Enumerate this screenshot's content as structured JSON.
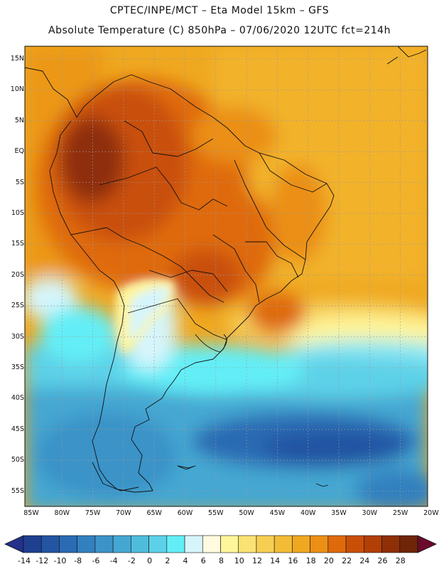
{
  "header": {
    "line1": "CPTEC/INPE/MCT –  Eta Model 15km – GFS",
    "line2": "Absolute Temperature (C) 850hPa – 07/06/2020 12UTC fct=214h"
  },
  "lat_labels": [
    "15N",
    "10N",
    "5N",
    "EQ",
    "5S",
    "10S",
    "15S",
    "20S",
    "25S",
    "30S",
    "35S",
    "40S",
    "45S",
    "50S",
    "55S"
  ],
  "lon_labels": [
    "85W",
    "80W",
    "75W",
    "70W",
    "65W",
    "60W",
    "55W",
    "50W",
    "45W",
    "40W",
    "35W",
    "30W",
    "25W",
    "20W"
  ],
  "colorbar": {
    "labels": [
      "-14",
      "-12",
      "-10",
      "-8",
      "-6",
      "-4",
      "-2",
      "0",
      "2",
      "4",
      "6",
      "8",
      "10",
      "12",
      "14",
      "16",
      "18",
      "20",
      "22",
      "24",
      "26",
      "28"
    ],
    "colors": [
      "#1f3f8f",
      "#2455a3",
      "#2b6bb3",
      "#3380bf",
      "#3b93c8",
      "#44a7d2",
      "#4fbcdc",
      "#5dd1e8",
      "#63eef7",
      "#d6f5fb",
      "#fffae0",
      "#fff59a",
      "#fbe274",
      "#f6cf52",
      "#f2bc37",
      "#efa820",
      "#eb8f16",
      "#df6a0c",
      "#c94f07",
      "#b13f06",
      "#8e2f07",
      "#6e2508"
    ],
    "under_color": "#24308a",
    "over_color": "#6b0a2a"
  }
}
